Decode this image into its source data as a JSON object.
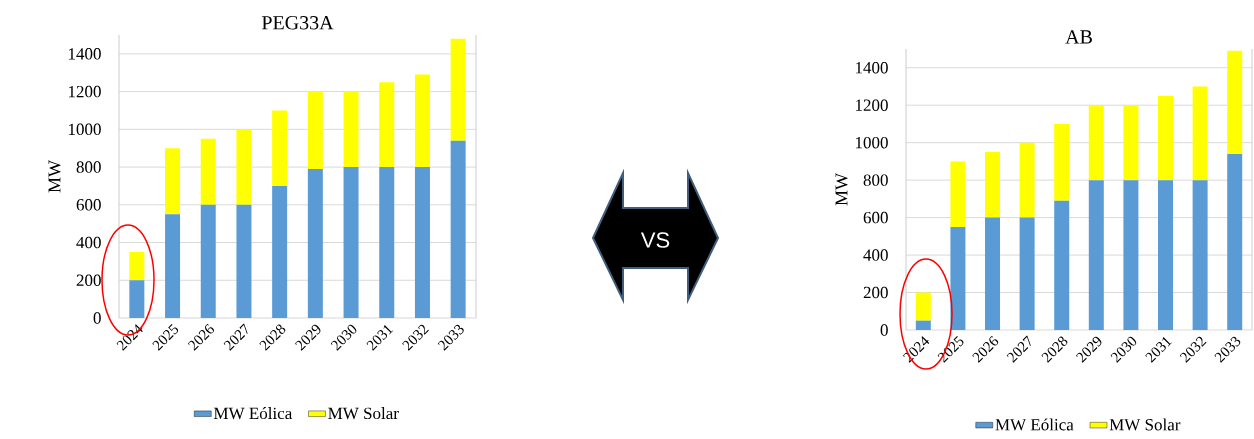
{
  "chart_data": [
    {
      "type": "bar",
      "title": "PEG33A",
      "ylabel": "MW",
      "stacked": true,
      "grid": "y",
      "legend": "bottom",
      "categories": [
        "2024",
        "2025",
        "2026",
        "2027",
        "2028",
        "2029",
        "2030",
        "2031",
        "2032",
        "2033"
      ],
      "series": [
        {
          "name": "MW Eólica",
          "color": "#5b9bd5",
          "values": [
            200,
            550,
            600,
            600,
            700,
            790,
            800,
            800,
            800,
            940
          ]
        },
        {
          "name": "MW Solar",
          "color": "#ffff00",
          "values": [
            150,
            350,
            350,
            400,
            400,
            410,
            400,
            450,
            490,
            540
          ]
        }
      ],
      "ylim": [
        0,
        1500
      ],
      "yticks": [
        0,
        200,
        400,
        600,
        800,
        1000,
        1200,
        1400
      ]
    },
    {
      "type": "other",
      "annotations": [
        "VS"
      ]
    },
    {
      "type": "bar",
      "title": "AB",
      "ylabel": "MW",
      "stacked": true,
      "grid": "y",
      "legend": "bottom",
      "categories": [
        "2024",
        "2025",
        "2026",
        "2027",
        "2028",
        "2029",
        "2030",
        "2031",
        "2032",
        "2033"
      ],
      "series": [
        {
          "name": "MW Eólica",
          "color": "#5b9bd5",
          "values": [
            50,
            550,
            600,
            600,
            690,
            800,
            800,
            800,
            800,
            940
          ]
        },
        {
          "name": "MW Solar",
          "color": "#ffff00",
          "values": [
            150,
            350,
            350,
            400,
            410,
            400,
            400,
            450,
            500,
            550
          ]
        }
      ],
      "ylim": [
        0,
        1500
      ],
      "yticks": [
        0,
        200,
        400,
        600,
        800,
        1000,
        1200,
        1400
      ]
    }
  ]
}
